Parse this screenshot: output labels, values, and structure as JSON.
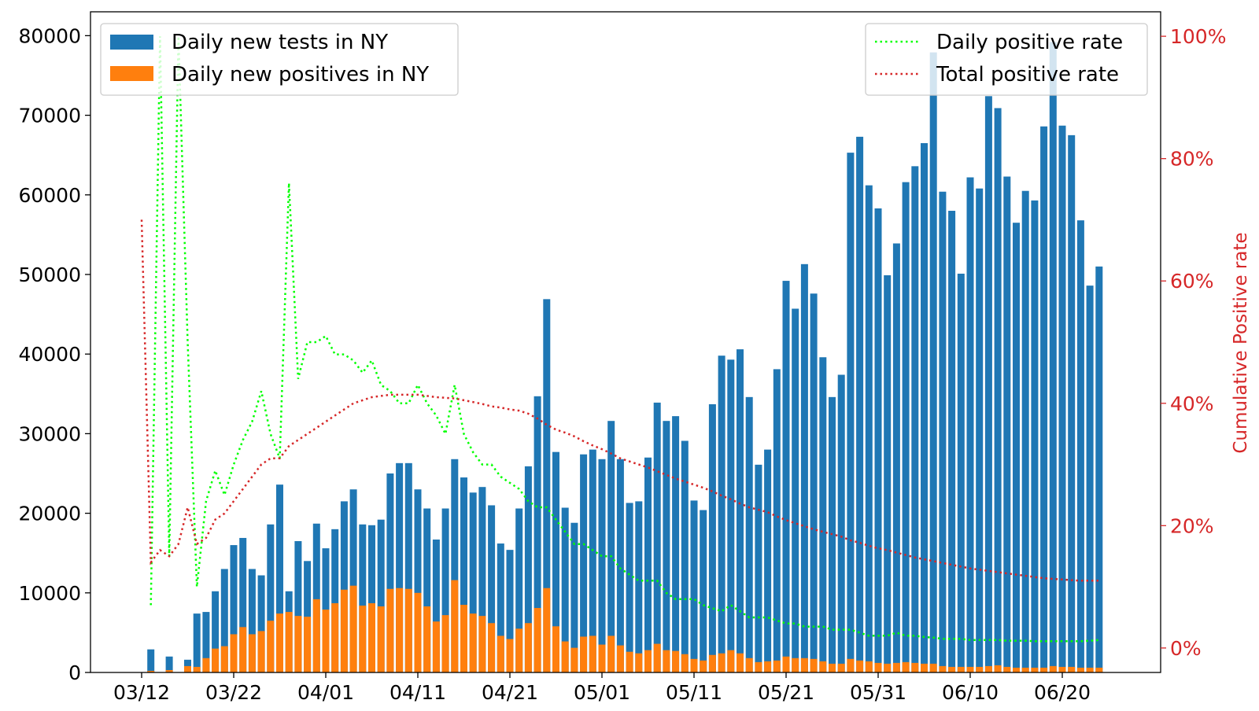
{
  "chart_data": {
    "type": "bar",
    "title": "",
    "xlabel": "",
    "ylabel": "",
    "y2label": "Cumulative Positive rate",
    "ylim": [
      0,
      83000
    ],
    "y2lim": [
      -0.04,
      1.04
    ],
    "grid": false,
    "x_start": "03/12",
    "x_ticks": [
      "03/12",
      "03/22",
      "04/01",
      "04/11",
      "04/21",
      "05/01",
      "05/11",
      "05/21",
      "05/31",
      "06/10",
      "06/20"
    ],
    "y_ticks": [
      0,
      10000,
      20000,
      30000,
      40000,
      50000,
      60000,
      70000,
      80000
    ],
    "y2_ticks": [
      "0%",
      "20%",
      "40%",
      "60%",
      "80%",
      "100%"
    ],
    "legend_left": {
      "placement": "upper left",
      "items": [
        "Daily new tests in NY",
        "Daily new positives in NY"
      ]
    },
    "legend_right": {
      "placement": "upper right",
      "items": [
        "Daily positive rate",
        "Total positive rate"
      ]
    },
    "colors": {
      "tests": "#1f77b4",
      "positives": "#ff7f0e",
      "daily_rate": "#00ff00",
      "total_rate": "#d62728",
      "right_axis": "#d62728"
    },
    "series": [
      {
        "name": "Daily new tests in NY",
        "kind": "bar",
        "values": [
          0,
          2900,
          0,
          2000,
          0,
          1600,
          7400,
          7600,
          10200,
          13000,
          16000,
          16900,
          13000,
          12200,
          18600,
          23600,
          10200,
          16500,
          14000,
          18700,
          15600,
          18000,
          21500,
          23000,
          18600,
          18500,
          19200,
          25000,
          26300,
          26300,
          23000,
          20600,
          16700,
          20600,
          26800,
          24500,
          22600,
          23300,
          21000,
          16200,
          15400,
          20600,
          25900,
          34700,
          46900,
          27700,
          20700,
          18800,
          27400,
          28000,
          26800,
          31600,
          26800,
          21300,
          21500,
          27000,
          33900,
          31600,
          32200,
          29100,
          21600,
          20400,
          33700,
          39800,
          39300,
          40600,
          34600,
          26100,
          28000,
          38100,
          49200,
          45700,
          51300,
          47600,
          39600,
          34600,
          37400,
          65300,
          67300,
          61200,
          58300,
          49900,
          53900,
          61600,
          63600,
          66500,
          77900,
          60400,
          58000,
          50100,
          62200,
          60800,
          72400,
          70900,
          62300,
          56500,
          60500,
          59300,
          68600,
          79200,
          68700,
          67500,
          56800,
          48600,
          51000
        ]
      },
      {
        "name": "Daily new positives in NY",
        "kind": "bar",
        "values": [
          0,
          200,
          0,
          300,
          0,
          800,
          700,
          1800,
          3000,
          3300,
          4800,
          5700,
          4800,
          5200,
          6500,
          7400,
          7600,
          7100,
          7000,
          9200,
          7900,
          8700,
          10400,
          10900,
          8400,
          8700,
          8300,
          10500,
          10600,
          10500,
          10000,
          8300,
          6400,
          7200,
          11600,
          8500,
          7400,
          7100,
          6200,
          4600,
          4200,
          5500,
          6200,
          8100,
          10600,
          5800,
          3900,
          3100,
          4500,
          4600,
          3500,
          4600,
          3400,
          2600,
          2400,
          2800,
          3600,
          2800,
          2700,
          2300,
          1700,
          1500,
          2200,
          2400,
          2800,
          2400,
          1800,
          1300,
          1400,
          1500,
          2000,
          1800,
          1800,
          1700,
          1400,
          1100,
          1100,
          1700,
          1500,
          1400,
          1200,
          1100,
          1200,
          1300,
          1200,
          1100,
          1100,
          800,
          700,
          700,
          700,
          700,
          800,
          900,
          700,
          600,
          600,
          600,
          600,
          800,
          700,
          700,
          600,
          600,
          600
        ]
      },
      {
        "name": "Daily positive rate",
        "kind": "line",
        "style": "dotted",
        "y_axis": "right",
        "values": [
          null,
          0.07,
          1.0,
          0.15,
          1.0,
          0.5,
          0.1,
          0.24,
          0.29,
          0.25,
          0.3,
          0.34,
          0.37,
          0.42,
          0.35,
          0.31,
          0.76,
          0.44,
          0.5,
          0.5,
          0.51,
          0.48,
          0.48,
          0.47,
          0.45,
          0.47,
          0.43,
          0.42,
          0.4,
          0.4,
          0.43,
          0.4,
          0.38,
          0.35,
          0.43,
          0.35,
          0.32,
          0.3,
          0.3,
          0.28,
          0.27,
          0.26,
          0.24,
          0.23,
          0.23,
          0.21,
          0.19,
          0.17,
          0.17,
          0.16,
          0.15,
          0.15,
          0.13,
          0.12,
          0.11,
          0.11,
          0.11,
          0.09,
          0.08,
          0.08,
          0.08,
          0.07,
          0.065,
          0.06,
          0.07,
          0.06,
          0.05,
          0.05,
          0.05,
          0.045,
          0.04,
          0.04,
          0.035,
          0.035,
          0.035,
          0.03,
          0.03,
          0.03,
          0.025,
          0.02,
          0.02,
          0.02,
          0.025,
          0.02,
          0.02,
          0.018,
          0.017,
          0.015,
          0.015,
          0.015,
          0.013,
          0.013,
          0.013,
          0.013,
          0.012,
          0.012,
          0.012,
          0.011,
          0.011,
          0.011,
          0.011,
          0.011,
          0.011,
          0.012,
          0.013
        ]
      },
      {
        "name": "Total positive rate",
        "kind": "line",
        "style": "dotted",
        "y_axis": "right",
        "values": [
          0.7,
          0.14,
          0.16,
          0.15,
          0.17,
          0.23,
          0.17,
          0.18,
          0.21,
          0.22,
          0.24,
          0.26,
          0.28,
          0.3,
          0.31,
          0.31,
          0.33,
          0.34,
          0.35,
          0.36,
          0.37,
          0.38,
          0.39,
          0.4,
          0.405,
          0.41,
          0.412,
          0.414,
          0.414,
          0.414,
          0.414,
          0.412,
          0.41,
          0.409,
          0.408,
          0.405,
          0.402,
          0.399,
          0.395,
          0.393,
          0.39,
          0.388,
          0.383,
          0.375,
          0.365,
          0.357,
          0.352,
          0.346,
          0.338,
          0.331,
          0.325,
          0.318,
          0.31,
          0.305,
          0.3,
          0.295,
          0.289,
          0.283,
          0.277,
          0.272,
          0.267,
          0.262,
          0.256,
          0.249,
          0.243,
          0.236,
          0.23,
          0.226,
          0.222,
          0.215,
          0.209,
          0.204,
          0.199,
          0.194,
          0.19,
          0.186,
          0.182,
          0.176,
          0.172,
          0.167,
          0.163,
          0.16,
          0.156,
          0.152,
          0.148,
          0.145,
          0.142,
          0.139,
          0.136,
          0.133,
          0.13,
          0.128,
          0.126,
          0.124,
          0.122,
          0.12,
          0.118,
          0.116,
          0.114,
          0.113,
          0.112,
          0.111,
          0.11,
          0.11,
          0.11
        ]
      }
    ]
  }
}
